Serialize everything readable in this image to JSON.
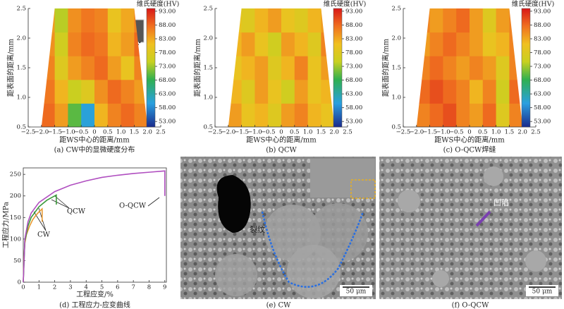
{
  "chart_data": [
    {
      "type": "heatmap",
      "caption": "(a) CW中的显微硬度分布",
      "xlabel": "距WS中心的距离/mm",
      "ylabel": "距表面的距离/mm",
      "colorbar_title": "维氏硬度(HV)",
      "xlim": [
        -2.5,
        2.5
      ],
      "ylim": [
        0.5,
        2.5
      ],
      "clim": [
        51,
        94
      ],
      "xticks": [
        {
          "value": -2.5,
          "label": "−2.5"
        },
        {
          "value": -2,
          "label": "−2.0"
        },
        {
          "value": -1.5,
          "label": "−1.5"
        },
        {
          "value": -1,
          "label": "−1.0"
        },
        {
          "value": -0.5,
          "label": "−0.5"
        },
        0,
        0.5,
        {
          "value": 1,
          "label": "1.0"
        },
        1.5,
        {
          "value": 2,
          "label": "2.0"
        },
        2.5
      ],
      "yticks": [
        0.5,
        {
          "value": 1,
          "label": "1.0"
        },
        1.5,
        {
          "value": 2,
          "label": "2.0"
        },
        2.5
      ],
      "cticks": [
        {
          "value": 53,
          "label": "53.00"
        },
        {
          "value": 58,
          "label": "58.00"
        },
        {
          "value": 63,
          "label": "63.00"
        },
        {
          "value": 68,
          "label": "68.00"
        },
        {
          "value": 73,
          "label": "73.00"
        },
        {
          "value": 78,
          "label": "78.00"
        },
        {
          "value": 83,
          "label": "83.00"
        },
        {
          "value": 88,
          "label": "88.00"
        },
        {
          "value": 93,
          "label": "93.00"
        }
      ],
      "xbins": [
        -2,
        -1.5,
        -1,
        -0.5,
        0,
        0.5,
        1,
        1.5,
        2
      ],
      "ybins": [
        0.5,
        0.9,
        1.3,
        1.7,
        2.1,
        2.5
      ],
      "z": [
        [
          88,
          84,
          70,
          60,
          82,
          86,
          88,
          86
        ],
        [
          87,
          82,
          75,
          78,
          85,
          88,
          86,
          84
        ],
        [
          86,
          78,
          84,
          86,
          88,
          84,
          80,
          86
        ],
        [
          85,
          76,
          86,
          88,
          87,
          82,
          84,
          88
        ],
        [
          84,
          74,
          85,
          87,
          86,
          80,
          83,
          86
        ]
      ]
    },
    {
      "type": "heatmap",
      "caption": "(b) QCW",
      "xlabel": "距WS中心的距离/mm",
      "ylabel": "距表面的距离/mm",
      "colorbar_title": "维氏硬度(HV)",
      "xlim": [
        -2.5,
        2.5
      ],
      "ylim": [
        0.5,
        2.5
      ],
      "clim": [
        51,
        94
      ],
      "xticks": [
        {
          "value": -2.5,
          "label": "−2.5"
        },
        {
          "value": -2,
          "label": "−2.0"
        },
        {
          "value": -1.5,
          "label": "−1.5"
        },
        {
          "value": -1,
          "label": "−1.0"
        },
        {
          "value": -0.5,
          "label": "−0.5"
        },
        0,
        0.5,
        {
          "value": 1,
          "label": "1.0"
        },
        1.5,
        {
          "value": 2,
          "label": "2.0"
        },
        2.5
      ],
      "yticks": [
        0.5,
        {
          "value": 1,
          "label": "1.0"
        },
        1.5,
        {
          "value": 2,
          "label": "2.0"
        },
        2.5
      ],
      "cticks": [
        {
          "value": 53,
          "label": "53.00"
        },
        {
          "value": 58,
          "label": "58.00"
        },
        {
          "value": 63,
          "label": "63.00"
        },
        {
          "value": 68,
          "label": "68.00"
        },
        {
          "value": 73,
          "label": "73.00"
        },
        {
          "value": 78,
          "label": "78.00"
        },
        {
          "value": 83,
          "label": "83.00"
        },
        {
          "value": 88,
          "label": "88.00"
        },
        {
          "value": 93,
          "label": "93.00"
        }
      ],
      "xbins": [
        -2,
        -1.5,
        -1,
        -0.5,
        0,
        0.5,
        1,
        1.5,
        2
      ],
      "ybins": [
        0.5,
        0.9,
        1.3,
        1.7,
        2.1,
        2.5
      ],
      "z": [
        [
          84,
          80,
          82,
          78,
          84,
          86,
          82,
          80
        ],
        [
          82,
          78,
          84,
          80,
          76,
          84,
          80,
          82
        ],
        [
          80,
          82,
          84,
          78,
          82,
          86,
          80,
          84
        ],
        [
          82,
          84,
          80,
          76,
          84,
          82,
          78,
          86
        ],
        [
          80,
          78,
          82,
          84,
          80,
          78,
          82,
          84
        ]
      ]
    },
    {
      "type": "heatmap",
      "caption": "(c) O-QCW焊缝",
      "xlabel": "距WS中心的距离/mm",
      "ylabel": "距表面的距离/mm",
      "colorbar_title": "维氏硬度(HV)",
      "xlim": [
        -2.5,
        2.5
      ],
      "ylim": [
        0.5,
        2.5
      ],
      "clim": [
        51,
        94
      ],
      "xticks": [
        {
          "value": -2.5,
          "label": "−2.5"
        },
        {
          "value": -2,
          "label": "−2.0"
        },
        {
          "value": -1.5,
          "label": "−1.5"
        },
        {
          "value": -1,
          "label": "−1.0"
        },
        {
          "value": -0.5,
          "label": "−0.5"
        },
        0,
        0.5,
        {
          "value": 1,
          "label": "1.0"
        },
        1.5,
        {
          "value": 2,
          "label": "2.0"
        },
        2.5
      ],
      "yticks": [
        0.5,
        {
          "value": 1,
          "label": "1.0"
        },
        1.5,
        {
          "value": 2,
          "label": "2.0"
        },
        2.5
      ],
      "cticks": [
        {
          "value": 53,
          "label": "53.00"
        },
        {
          "value": 58,
          "label": "58.00"
        },
        {
          "value": 63,
          "label": "63.00"
        },
        {
          "value": 68,
          "label": "68.00"
        },
        {
          "value": 73,
          "label": "73.00"
        },
        {
          "value": 78,
          "label": "78.00"
        },
        {
          "value": 83,
          "label": "83.00"
        },
        {
          "value": 88,
          "label": "88.00"
        },
        {
          "value": 93,
          "label": "93.00"
        }
      ],
      "xbins": [
        -2,
        -1.5,
        -1,
        -0.5,
        0,
        0.5,
        1,
        1.5,
        2
      ],
      "ybins": [
        0.5,
        0.9,
        1.3,
        1.7,
        2.1,
        2.5
      ],
      "z": [
        [
          86,
          88,
          90,
          86,
          84,
          88,
          78,
          86
        ],
        [
          88,
          90,
          88,
          86,
          82,
          86,
          76,
          88
        ],
        [
          86,
          88,
          86,
          84,
          86,
          84,
          78,
          86
        ],
        [
          84,
          86,
          88,
          86,
          84,
          80,
          82,
          86
        ],
        [
          86,
          84,
          86,
          88,
          84,
          78,
          84,
          86
        ]
      ]
    },
    {
      "type": "line",
      "caption": "(d) 工程应力-应变曲线",
      "xlabel": "工程应变/%",
      "ylabel": "工程应力/MPa",
      "xlim": [
        0,
        9.1
      ],
      "ylim": [
        0,
        265
      ],
      "xticks": [
        0,
        1,
        2,
        3,
        4,
        5,
        6,
        7,
        8,
        9
      ],
      "yticks": [
        0,
        50,
        100,
        150,
        200,
        250
      ],
      "series": [
        {
          "name": "CW",
          "color": "#e8982e",
          "x": [
            0,
            0.05,
            0.1,
            0.2,
            0.4,
            0.6,
            0.8,
            1.0,
            1.2,
            1.2
          ],
          "values": [
            0,
            60,
            90,
            110,
            130,
            145,
            155,
            163,
            170,
            140
          ]
        },
        {
          "name": "QCW",
          "color": "#3a9a3a",
          "x": [
            0,
            0.1,
            0.3,
            0.5,
            1,
            1.5,
            2,
            2.1,
            2.1
          ],
          "values": [
            0,
            95,
            130,
            150,
            175,
            190,
            200,
            202,
            180
          ]
        },
        {
          "name": "O-QCW",
          "color": "#b04fc0",
          "x": [
            0,
            0.1,
            0.3,
            0.5,
            1,
            2,
            3,
            4,
            5,
            6,
            7,
            8,
            9,
            9
          ],
          "values": [
            0,
            100,
            140,
            160,
            185,
            210,
            225,
            235,
            243,
            248,
            252,
            255,
            258,
            200
          ]
        }
      ]
    }
  ],
  "images": [
    {
      "caption": "(e) CW",
      "annotation": "裂纹",
      "scale_bar": "50 μm"
    },
    {
      "caption": "(f) O-QCW",
      "annotation": "凹陷",
      "scale_bar": "50 μm"
    }
  ]
}
